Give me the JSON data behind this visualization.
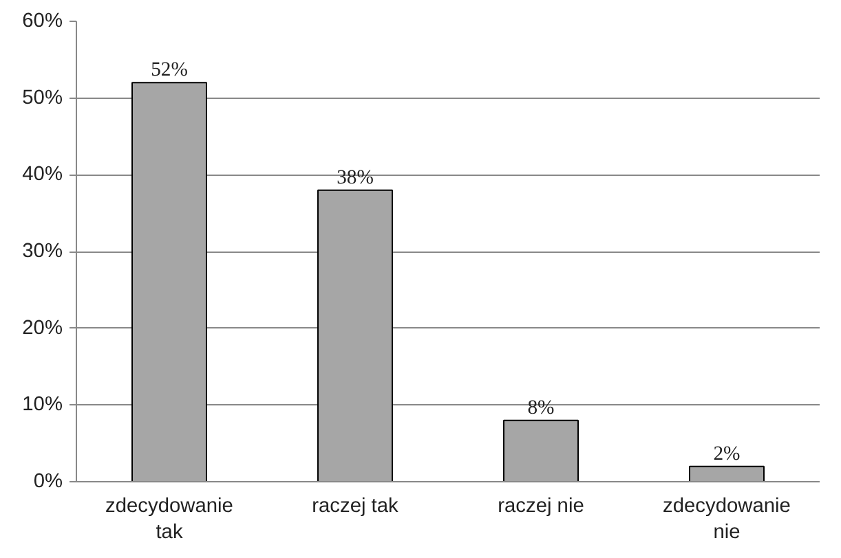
{
  "chart_data": {
    "type": "bar",
    "categories": [
      "zdecydowanie\ntak",
      "raczej tak",
      "raczej nie",
      "zdecydowanie\nnie"
    ],
    "values": [
      52,
      38,
      8,
      2
    ],
    "value_labels": [
      "52%",
      "38%",
      "8%",
      "2%"
    ],
    "color": "#a6a6a6",
    "ylim": [
      0,
      60
    ],
    "yticks": [
      {
        "value": 0,
        "label": "0%"
      },
      {
        "value": 10,
        "label": "10%"
      },
      {
        "value": 20,
        "label": "20%"
      },
      {
        "value": 30,
        "label": "30%"
      },
      {
        "value": 40,
        "label": "40%"
      },
      {
        "value": 50,
        "label": "50%"
      },
      {
        "value": 60,
        "label": "60%"
      }
    ],
    "grid": "y"
  }
}
